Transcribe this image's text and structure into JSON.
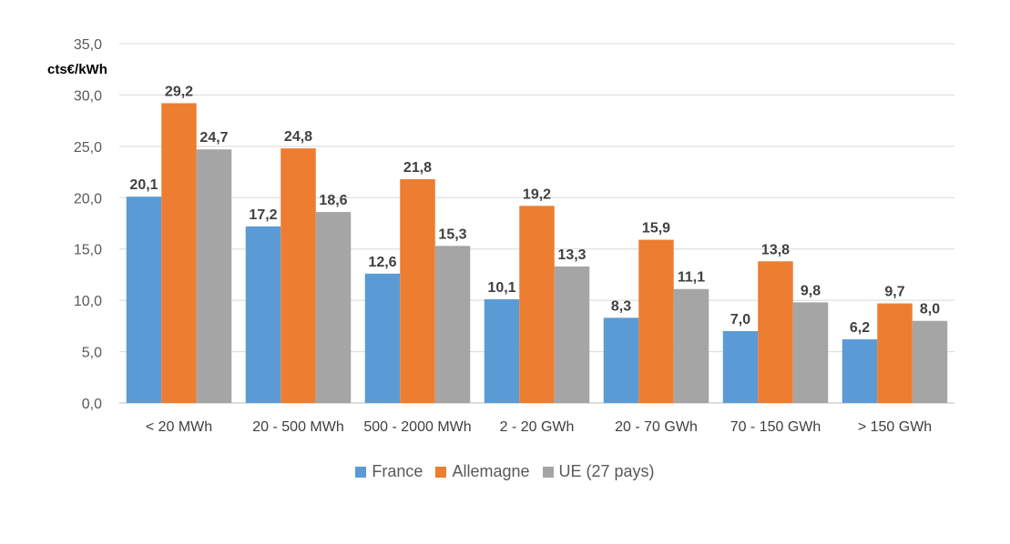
{
  "chart_data": {
    "type": "bar",
    "ylabel": "cts€/kWh",
    "ylim": [
      0,
      35
    ],
    "yticks": [
      "0,0",
      "5,0",
      "10,0",
      "15,0",
      "20,0",
      "25,0",
      "30,0",
      "35,0"
    ],
    "grid": true,
    "legend_position": "bottom",
    "categories": [
      "< 20 MWh",
      "20 - 500 MWh",
      "500 - 2000 MWh",
      "2 - 20 GWh",
      "20 - 70 GWh",
      "70 - 150 GWh",
      "> 150 GWh"
    ],
    "series": [
      {
        "name": "France",
        "color": "#5B9BD5",
        "values": [
          20.1,
          17.2,
          12.6,
          10.1,
          8.3,
          7.0,
          6.2
        ],
        "labels": [
          "20,1",
          "17,2",
          "12,6",
          "10,1",
          "8,3",
          "7,0",
          "6,2"
        ]
      },
      {
        "name": "Allemagne",
        "color": "#ED7D31",
        "values": [
          29.2,
          24.8,
          21.8,
          19.2,
          15.9,
          13.8,
          9.7
        ],
        "labels": [
          "29,2",
          "24,8",
          "21,8",
          "19,2",
          "15,9",
          "13,8",
          "9,7"
        ]
      },
      {
        "name": "UE (27 pays)",
        "color": "#A5A5A5",
        "values": [
          24.7,
          18.6,
          15.3,
          13.3,
          11.1,
          9.8,
          8.0
        ],
        "labels": [
          "24,7",
          "18,6",
          "15,3",
          "13,3",
          "11,1",
          "9,8",
          "8,0"
        ]
      }
    ]
  }
}
